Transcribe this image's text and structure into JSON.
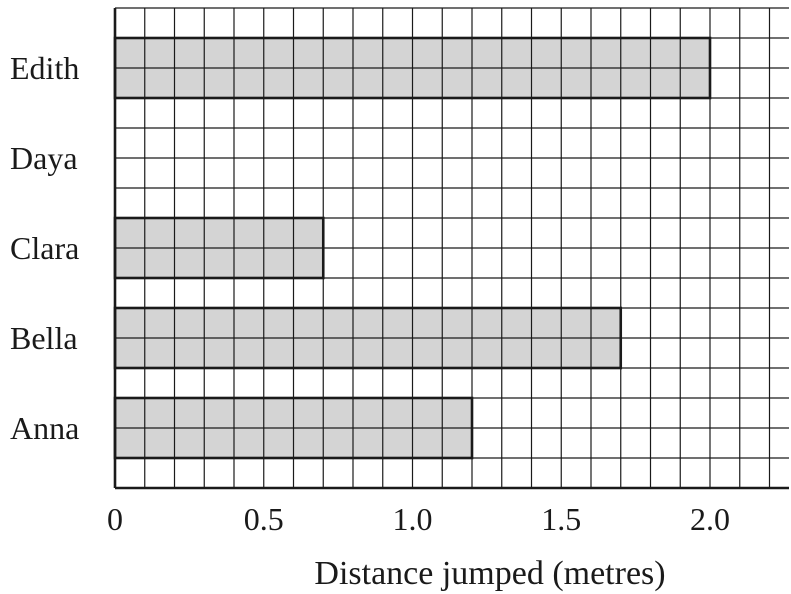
{
  "chart_data": {
    "type": "bar",
    "orientation": "horizontal",
    "title": "",
    "xlabel": "Distance jumped (metres)",
    "ylabel": "",
    "categories": [
      "Anna",
      "Bella",
      "Clara",
      "Daya",
      "Edith"
    ],
    "values": [
      1.2,
      1.7,
      0.7,
      null,
      2.0
    ],
    "xlim": [
      0,
      2.2
    ],
    "xticks": [
      "0",
      "0.5",
      "1.0",
      "1.5",
      "2.0"
    ],
    "grid": true,
    "bar_color": "#d4d4d4",
    "line_color": "#1a1a1a"
  }
}
